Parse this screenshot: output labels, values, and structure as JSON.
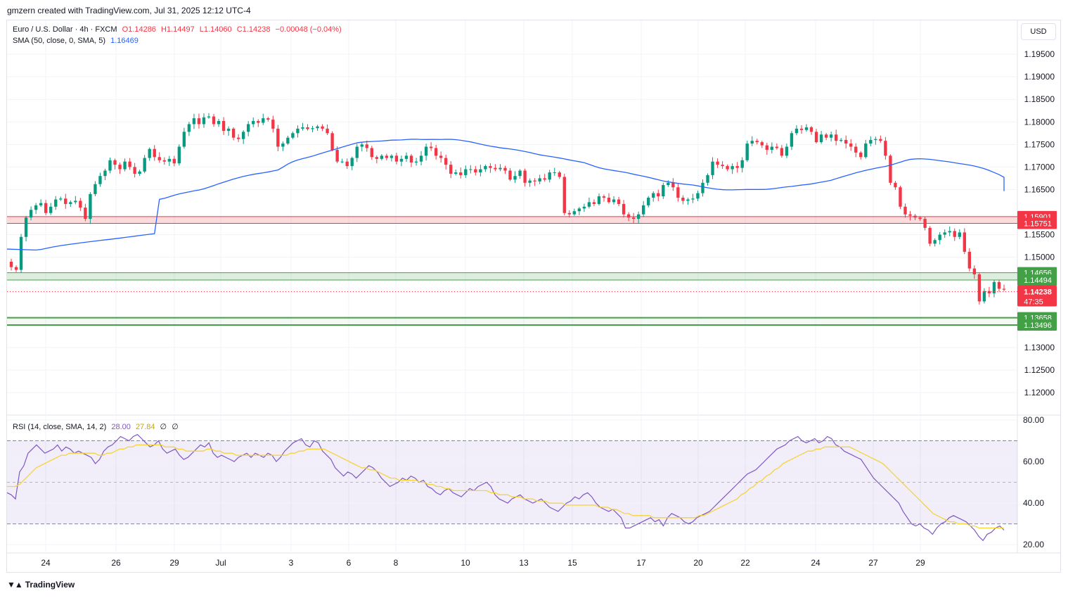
{
  "header": {
    "attribution": "gmzern created with TradingView.com, Jul 31, 2025 12:12 UTC-4"
  },
  "legend": {
    "symbol": "Euro / U.S. Dollar · 4h · FXCM",
    "open": "O1.14286",
    "high": "H1.14497",
    "low": "L1.14060",
    "close": "C1.14238",
    "change": "−0.00048 (−0.04%)",
    "sma_label": "SMA (50, close, 0, SMA, 5)",
    "sma_value": "1.16469",
    "rsi_label": "RSI (14, close, SMA, 14, 2)",
    "rsi_value": "28.00",
    "rsi_ma_value": "27.84",
    "rsi_extra1": "∅",
    "rsi_extra2": "∅"
  },
  "currency_button": "USD",
  "brand": {
    "name": "TradingView",
    "logo": "tradingview-logo-icon"
  },
  "colors": {
    "up": "#089981",
    "down": "#f23645",
    "sma": "#2962ff",
    "rsi": "#7e57c2",
    "rsi_ma": "#f5d33a",
    "resistance": "#f23645",
    "support": "#43a047"
  },
  "chart_data": [
    {
      "type": "candlestick",
      "title": "Euro / U.S. Dollar · 4h · FXCM",
      "interval": "4h",
      "x_ticks": [
        "24",
        "26",
        "29",
        "Jul",
        "3",
        "6",
        "8",
        "10",
        "13",
        "15",
        "17",
        "20",
        "22",
        "24",
        "27",
        "29"
      ],
      "y_ticks": [
        "1.19500",
        "1.19000",
        "1.18500",
        "1.18000",
        "1.17500",
        "1.17000",
        "1.16500",
        "1.15500",
        "1.15000",
        "1.13000",
        "1.12500",
        "1.12000"
      ],
      "ylim": [
        1.115,
        1.2025
      ],
      "current_price": {
        "value": 1.14238,
        "label": "1.14238",
        "countdown": "47:35"
      },
      "zones": [
        {
          "kind": "resistance",
          "upper": 1.15901,
          "lower": 1.15751,
          "upper_label": "1.15901",
          "lower_label": "1.15751"
        },
        {
          "kind": "support",
          "upper": 1.14656,
          "lower": 1.14494,
          "upper_label": "1.14656",
          "lower_label": "1.14494"
        },
        {
          "kind": "support",
          "upper": 1.13658,
          "lower": 1.13496,
          "upper_label": "1.13658",
          "lower_label": "1.13496"
        }
      ],
      "close_path": [
        1.1478,
        1.1472,
        1.1545,
        1.1588,
        1.1605,
        1.1615,
        1.162,
        1.1598,
        1.1612,
        1.1628,
        1.163,
        1.1618,
        1.1622,
        1.1625,
        1.161,
        1.1585,
        1.164,
        1.1662,
        1.168,
        1.1692,
        1.1715,
        1.1705,
        1.1695,
        1.1712,
        1.17,
        1.1685,
        1.169,
        1.172,
        1.174,
        1.1722,
        1.1715,
        1.1712,
        1.1718,
        1.1708,
        1.1745,
        1.1778,
        1.1795,
        1.1808,
        1.1795,
        1.181,
        1.1812,
        1.1795,
        1.1802,
        1.178,
        1.1785,
        1.1765,
        1.1762,
        1.1778,
        1.1795,
        1.1802,
        1.1798,
        1.1808,
        1.1805,
        1.1785,
        1.1745,
        1.1752,
        1.1765,
        1.1775,
        1.1785,
        1.1788,
        1.1784,
        1.1786,
        1.179,
        1.1785,
        1.1775,
        1.1738,
        1.1712,
        1.1712,
        1.1702,
        1.172,
        1.1745,
        1.175,
        1.1742,
        1.1722,
        1.1718,
        1.1725,
        1.172,
        1.1725,
        1.1712,
        1.1718,
        1.1725,
        1.171,
        1.1712,
        1.1725,
        1.1745,
        1.1742,
        1.1725,
        1.172,
        1.1705,
        1.1685,
        1.1688,
        1.1682,
        1.1695,
        1.1695,
        1.1688,
        1.1695,
        1.1702,
        1.1698,
        1.1695,
        1.1698,
        1.1692,
        1.1672,
        1.168,
        1.1692,
        1.1665,
        1.167,
        1.1668,
        1.1675,
        1.1672,
        1.1688,
        1.1688,
        1.1678,
        1.1598,
        1.1595,
        1.1602,
        1.1608,
        1.1612,
        1.1622,
        1.1618,
        1.1635,
        1.1632,
        1.1622,
        1.1628,
        1.1618,
        1.1595,
        1.1588,
        1.1585,
        1.1595,
        1.1615,
        1.1632,
        1.1642,
        1.1635,
        1.166,
        1.1665,
        1.1655,
        1.1632,
        1.1625,
        1.1628,
        1.163,
        1.1642,
        1.1665,
        1.1682,
        1.1712,
        1.1705,
        1.1702,
        1.1695,
        1.1702,
        1.1698,
        1.1715,
        1.1752,
        1.1758,
        1.1755,
        1.1748,
        1.1738,
        1.1745,
        1.1742,
        1.1725,
        1.1745,
        1.1775,
        1.1785,
        1.1782,
        1.1788,
        1.1778,
        1.1755,
        1.1772,
        1.1765,
        1.1772,
        1.1758,
        1.176,
        1.1752,
        1.1745,
        1.1732,
        1.1722,
        1.1752,
        1.176,
        1.1762,
        1.1758,
        1.1725,
        1.1665,
        1.1655,
        1.1612,
        1.1595,
        1.1592,
        1.1588,
        1.1585,
        1.1565,
        1.153,
        1.1538,
        1.155,
        1.1555,
        1.1558,
        1.1545,
        1.1555,
        1.1512,
        1.1475,
        1.1462,
        1.1402,
        1.1425,
        1.142,
        1.1445,
        1.143,
        1.1428
      ]
    },
    {
      "type": "line",
      "title": "RSI (14, close, SMA, 14, 2)",
      "y_ticks": [
        "80.00",
        "60.00",
        "40.00",
        "20.00"
      ],
      "ylim": [
        16,
        82
      ],
      "bands": {
        "upper": 70,
        "middle": 50,
        "lower": 30
      },
      "series": [
        {
          "name": "RSI",
          "values": [
            45,
            44,
            42,
            55,
            58,
            64,
            66,
            68,
            66,
            64,
            65,
            66,
            68,
            65,
            67,
            66,
            64,
            65,
            64,
            63,
            62,
            59,
            61,
            65,
            67,
            68,
            70,
            72,
            71,
            70,
            72,
            73,
            71,
            69,
            67,
            68,
            70,
            66,
            64,
            65,
            66,
            63,
            61,
            62,
            64,
            66,
            68,
            67,
            69,
            64,
            62,
            63,
            62,
            61,
            60,
            62,
            63,
            64,
            62,
            64,
            63,
            62,
            64,
            63,
            60,
            62,
            65,
            67,
            69,
            70,
            71,
            68,
            67,
            70,
            69,
            65,
            63,
            61,
            57,
            55,
            53,
            55,
            54,
            52,
            54,
            56,
            58,
            57,
            55,
            52,
            50,
            48,
            49,
            50,
            52,
            51,
            53,
            52,
            50,
            51,
            48,
            47,
            45,
            44,
            46,
            47,
            45,
            44,
            43,
            45,
            47,
            46,
            48,
            49,
            50,
            48,
            44,
            42,
            41,
            40,
            42,
            43,
            44,
            42,
            41,
            40,
            41,
            42,
            40,
            38,
            37,
            36,
            38,
            40,
            41,
            43,
            42,
            44,
            45,
            43,
            40,
            38,
            37,
            36,
            37,
            35,
            33,
            28,
            28,
            29,
            30,
            31,
            32,
            33,
            31,
            32,
            29,
            33,
            35,
            34,
            33,
            31,
            30,
            31,
            33,
            34,
            35,
            36,
            38,
            40,
            42,
            44,
            46,
            48,
            50,
            52,
            54,
            55,
            56,
            58,
            60,
            62,
            64,
            66,
            67,
            68,
            70,
            71,
            72,
            70,
            69,
            70,
            71,
            69,
            70,
            72,
            71,
            68,
            67,
            65,
            64,
            63,
            62,
            61,
            58,
            55,
            52,
            50,
            48,
            46,
            44,
            42,
            40,
            36,
            33,
            30,
            29,
            30,
            28,
            27,
            25,
            28,
            30,
            31,
            33,
            34,
            33,
            32,
            31,
            29,
            27,
            24,
            22,
            25,
            26,
            28,
            29,
            27
          ]
        },
        {
          "name": "RSI MA",
          "values": [
            48,
            48,
            48,
            49,
            51,
            53,
            55,
            57,
            58,
            59,
            60,
            61,
            62,
            63,
            63,
            64,
            64,
            64,
            64,
            64,
            64,
            64,
            63,
            63,
            64,
            64,
            65,
            66,
            66,
            67,
            67,
            68,
            68,
            68,
            68,
            68,
            68,
            68,
            67,
            67,
            67,
            66,
            66,
            65,
            65,
            65,
            65,
            65,
            66,
            66,
            65,
            65,
            64,
            64,
            64,
            63,
            63,
            63,
            63,
            63,
            63,
            63,
            63,
            63,
            63,
            63,
            63,
            63,
            64,
            64,
            65,
            65,
            66,
            66,
            66,
            66,
            66,
            65,
            64,
            63,
            62,
            61,
            60,
            59,
            58,
            57,
            57,
            56,
            56,
            55,
            54,
            53,
            52,
            52,
            51,
            51,
            51,
            51,
            51,
            50,
            50,
            49,
            49,
            48,
            48,
            47,
            47,
            46,
            46,
            46,
            46,
            46,
            46,
            46,
            46,
            46,
            45,
            45,
            44,
            44,
            44,
            43,
            43,
            43,
            42,
            42,
            42,
            41,
            41,
            41,
            40,
            40,
            40,
            40,
            39,
            39,
            39,
            39,
            39,
            39,
            39,
            39,
            38,
            38,
            38,
            37,
            37,
            36,
            35,
            35,
            34,
            34,
            34,
            34,
            34,
            33,
            33,
            33,
            33,
            33,
            33,
            33,
            33,
            33,
            33,
            33,
            34,
            34,
            35,
            36,
            37,
            38,
            39,
            40,
            41,
            42,
            44,
            45,
            47,
            48,
            50,
            51,
            53,
            54,
            56,
            57,
            59,
            60,
            61,
            62,
            63,
            64,
            65,
            65,
            66,
            66,
            67,
            67,
            67,
            67,
            67,
            67,
            67,
            66,
            65,
            64,
            63,
            62,
            61,
            60,
            59,
            57,
            55,
            53,
            51,
            49,
            47,
            45,
            43,
            41,
            39,
            37,
            35,
            34,
            33,
            32,
            31,
            31,
            30,
            30,
            30,
            29,
            29,
            28,
            28,
            28,
            28,
            28,
            28,
            28
          ]
        }
      ]
    }
  ]
}
